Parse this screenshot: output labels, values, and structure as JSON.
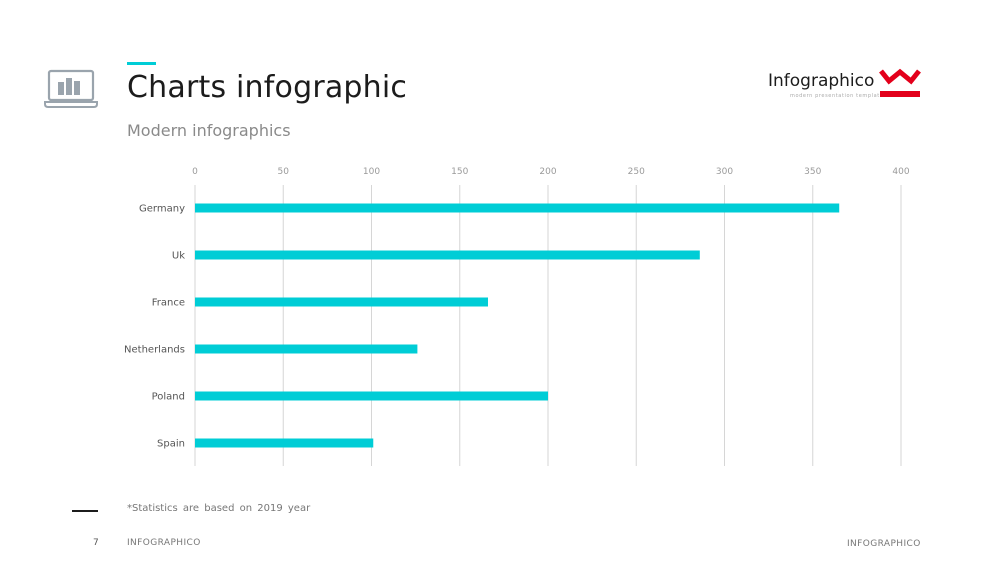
{
  "header": {
    "title": "Charts infographic",
    "subtitle": "Modern infographics",
    "icon": "laptop-chart-icon"
  },
  "brand": {
    "name": "Infographico",
    "tagline": "modern presentation templates",
    "logo": "crown-logo",
    "logo_color": "#e3001b"
  },
  "chart_data": {
    "type": "bar",
    "orientation": "horizontal",
    "categories": [
      "Germany",
      "Uk",
      "France",
      "Netherlands",
      "Poland",
      "Spain"
    ],
    "values": [
      365,
      286,
      166,
      126,
      200,
      101
    ],
    "xlim": [
      0,
      400
    ],
    "ticks": [
      "0",
      "50",
      "100",
      "150",
      "200",
      "250",
      "300",
      "350",
      "400"
    ],
    "tick_axis_position": "top",
    "grid": true,
    "bar_color": "#00cdd6"
  },
  "footer": {
    "note": "*Statistics are based on 2019 year",
    "page_number": "7",
    "left_label": "INFOGRAPHICO",
    "right_label": "INFOGRAPHICO"
  },
  "colors": {
    "accent": "#00cdd6",
    "text": "#1c1c1c",
    "grid": "#d6d6d6"
  }
}
